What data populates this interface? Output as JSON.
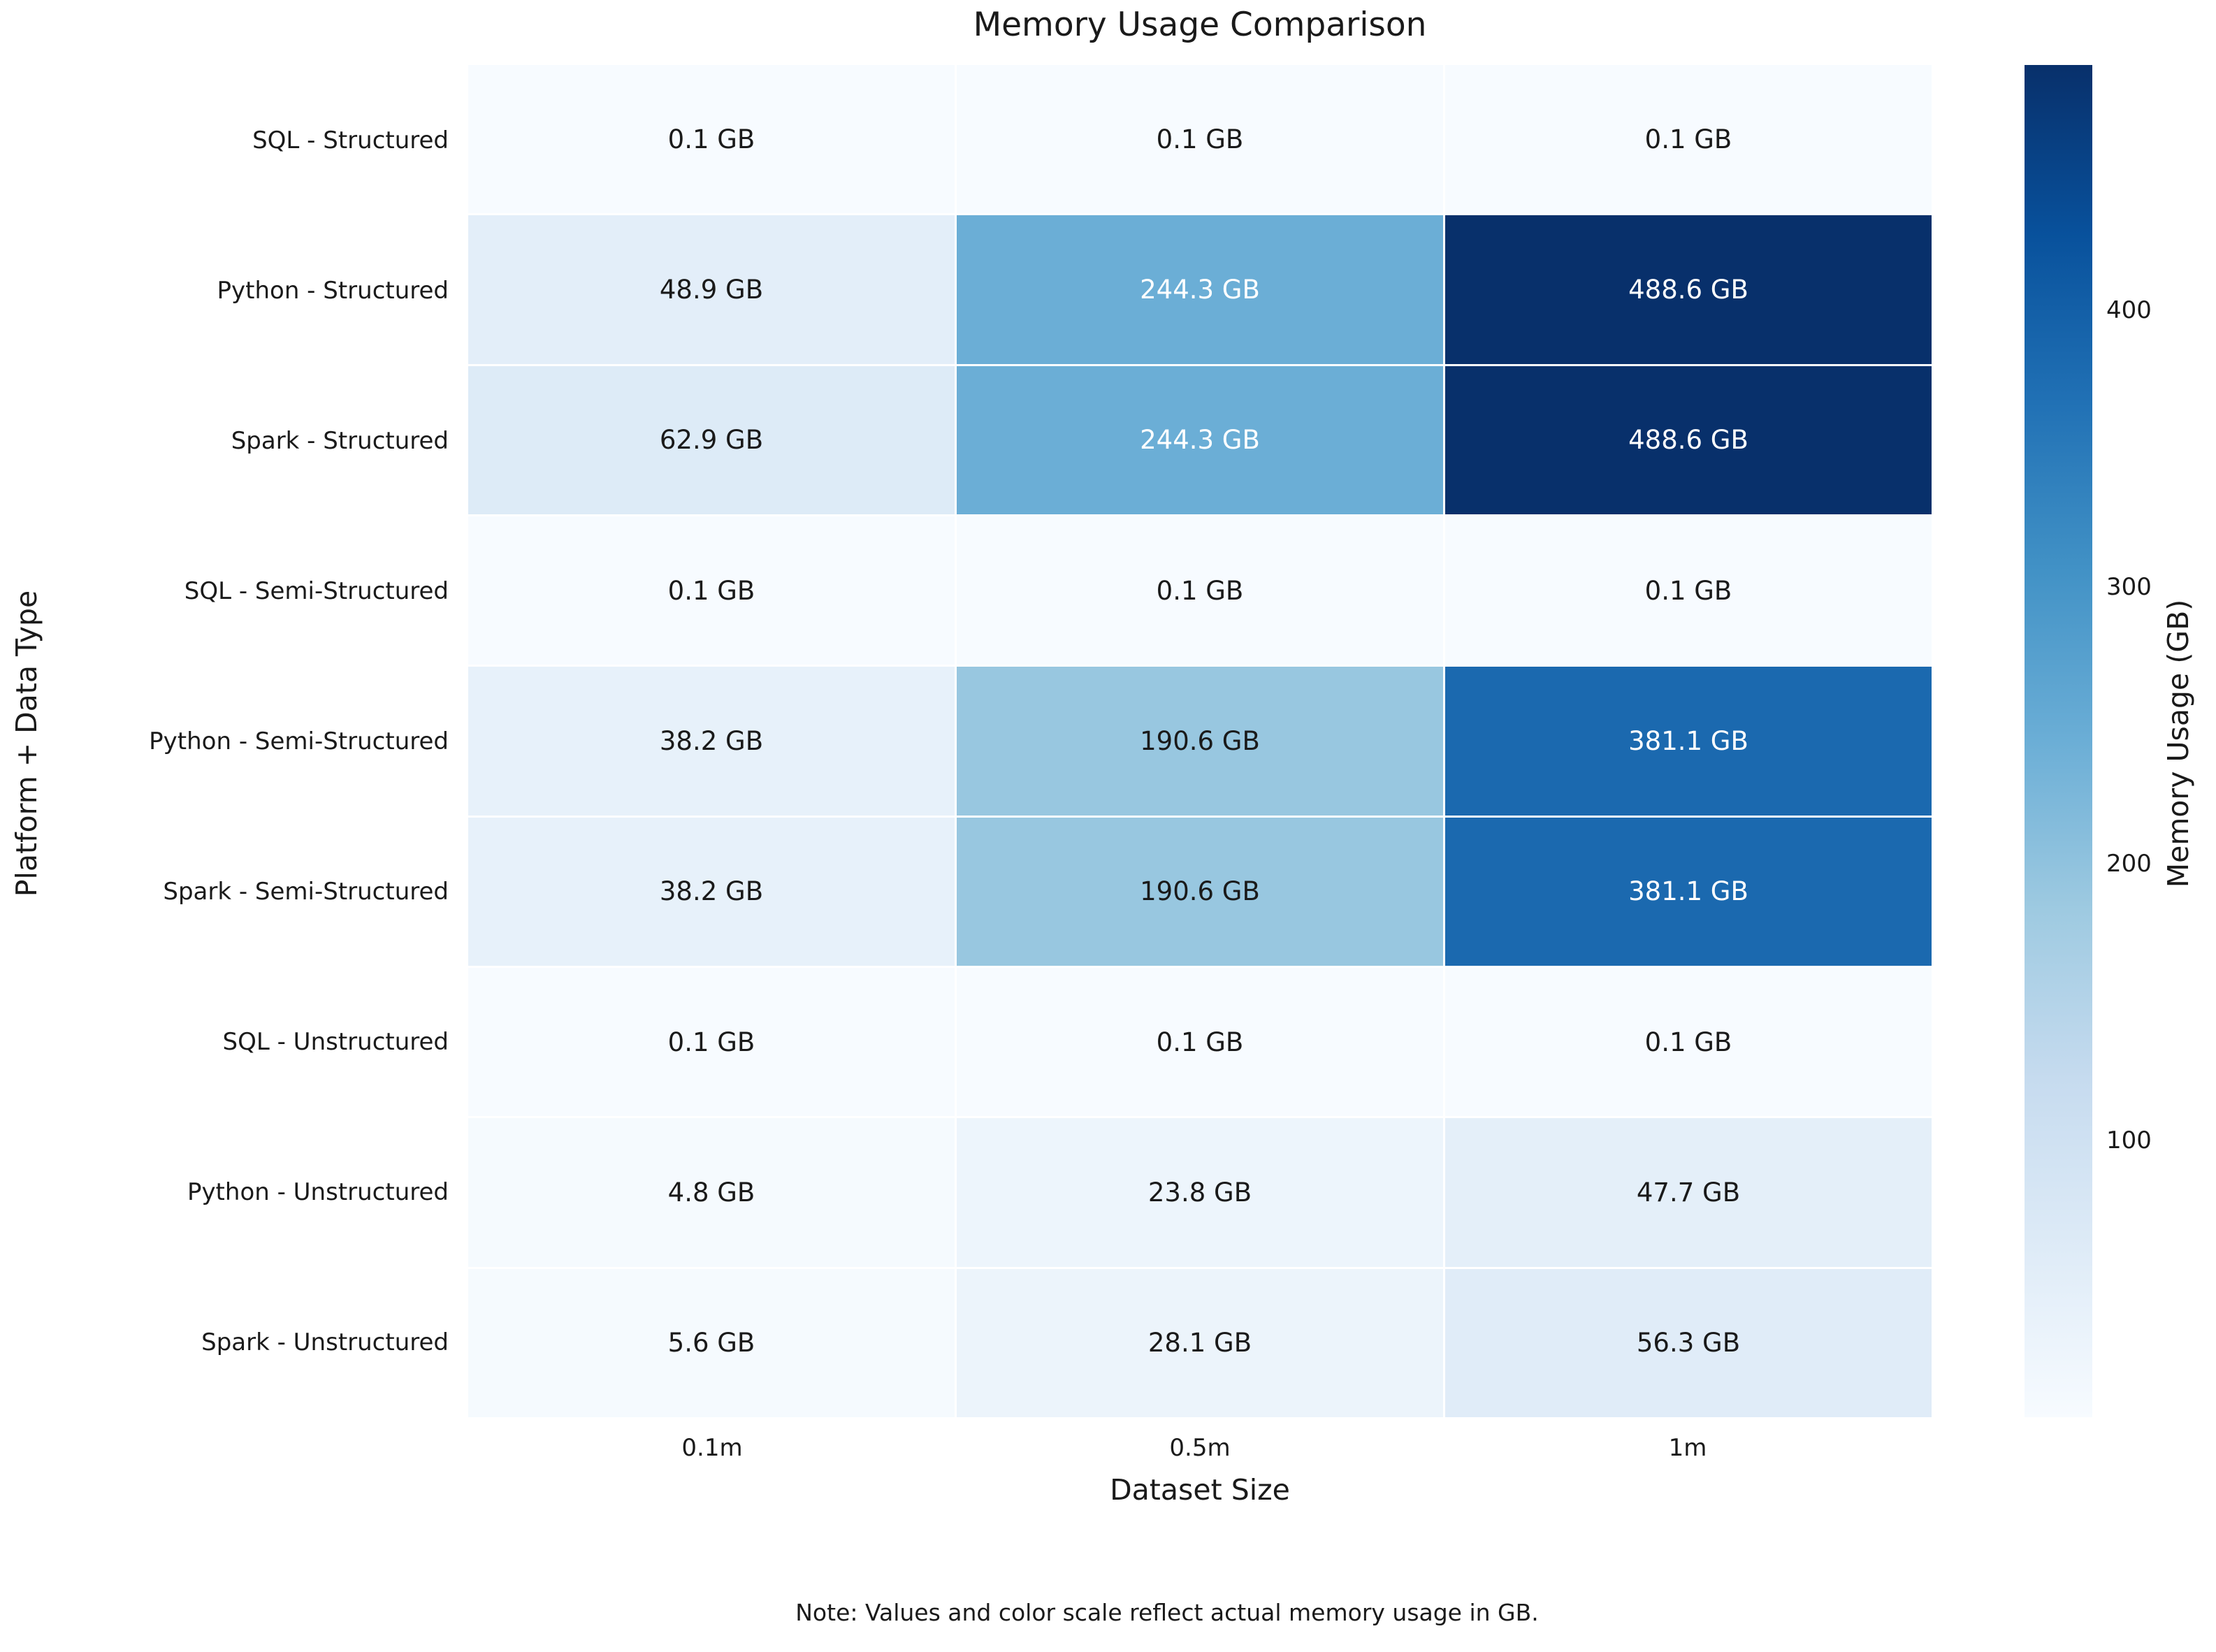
{
  "chart_data": {
    "type": "heatmap",
    "title": "Memory Usage Comparison",
    "xlabel": "Dataset Size",
    "ylabel": "Platform + Data Type",
    "x_categories": [
      "0.1m",
      "0.5m",
      "1m"
    ],
    "y_categories": [
      "SQL - Structured",
      "Python - Structured",
      "Spark - Structured",
      "SQL - Semi-Structured",
      "Python - Semi-Structured",
      "Spark - Semi-Structured",
      "SQL - Unstructured",
      "Python - Unstructured",
      "Spark - Unstructured"
    ],
    "values_gb": [
      [
        0.1,
        0.1,
        0.1
      ],
      [
        48.9,
        244.3,
        488.6
      ],
      [
        62.9,
        244.3,
        488.6
      ],
      [
        0.1,
        0.1,
        0.1
      ],
      [
        38.2,
        190.6,
        381.1
      ],
      [
        38.2,
        190.6,
        381.1
      ],
      [
        0.1,
        0.1,
        0.1
      ],
      [
        4.8,
        23.8,
        47.7
      ],
      [
        5.6,
        28.1,
        56.3
      ]
    ],
    "cell_labels": [
      [
        "0.1 GB",
        "0.1 GB",
        "0.1 GB"
      ],
      [
        "48.9 GB",
        "244.3 GB",
        "488.6 GB"
      ],
      [
        "62.9 GB",
        "244.3 GB",
        "488.6 GB"
      ],
      [
        "0.1 GB",
        "0.1 GB",
        "0.1 GB"
      ],
      [
        "38.2 GB",
        "190.6 GB",
        "381.1 GB"
      ],
      [
        "38.2 GB",
        "190.6 GB",
        "381.1 GB"
      ],
      [
        "0.1 GB",
        "0.1 GB",
        "0.1 GB"
      ],
      [
        "4.8 GB",
        "23.8 GB",
        "47.7 GB"
      ],
      [
        "5.6 GB",
        "28.1 GB",
        "56.3 GB"
      ]
    ],
    "note": "Note: Values and color scale reflect actual memory usage in GB.",
    "colorbar": {
      "label": "Memory Usage (GB)",
      "tick_labels": [
        "100",
        "200",
        "300",
        "400"
      ],
      "tick_values": [
        100,
        200,
        300,
        400
      ],
      "vmin": 0.1,
      "vmax": 488.6
    },
    "colormap": {
      "name": "Blues",
      "stops": [
        "#f7fbff",
        "#deebf7",
        "#c6dbef",
        "#9ecae1",
        "#6baed6",
        "#4292c6",
        "#2171b5",
        "#08519c",
        "#08306b"
      ]
    },
    "grid_line_color": "#ffffff",
    "text_color_dark": "#1a1a1a",
    "text_color_light": "#ffffff"
  }
}
